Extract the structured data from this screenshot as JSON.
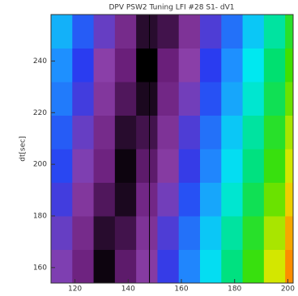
{
  "chart_data": {
    "type": "heatmap",
    "title": "DPV PSW2 Tuning LFI #28 S1- dV1",
    "ylabel": "dt[sec]",
    "x": [
      115,
      123,
      131,
      139,
      147,
      155,
      163,
      171,
      179,
      187,
      195,
      203
    ],
    "y": [
      160.5,
      173.5,
      186.5,
      199.5,
      212.5,
      225.5,
      238.5,
      251.5
    ],
    "z": [
      [
        17,
        9,
        1,
        7,
        15,
        23,
        31,
        39,
        47,
        55,
        63,
        71
      ],
      [
        19,
        11,
        3,
        5,
        13,
        21,
        29,
        37,
        45,
        53,
        61,
        69
      ],
      [
        22,
        14,
        6,
        2,
        10,
        18,
        26,
        34,
        42,
        50,
        58,
        66
      ],
      [
        25,
        17,
        9,
        1,
        7,
        15,
        23,
        31,
        39,
        47,
        55,
        63
      ],
      [
        27,
        19,
        11,
        3,
        5,
        13,
        21,
        29,
        37,
        45,
        53,
        61
      ],
      [
        30,
        22,
        14,
        6,
        2,
        10,
        18,
        26,
        34,
        42,
        50,
        58
      ],
      [
        32,
        24,
        16,
        8,
        0,
        8,
        16,
        24,
        32,
        40,
        48,
        56
      ],
      [
        35,
        27,
        19,
        11,
        3,
        5,
        13,
        21,
        29,
        37,
        45,
        53
      ]
    ],
    "zlim": [
      0,
      80
    ],
    "colors": [
      "#000000",
      "#6a1f7a",
      "#8a3fa8",
      "#2a3cf0",
      "#1e90ff",
      "#00e8f0",
      "#00e070",
      "#40e000",
      "#e8e800",
      "#ff8000",
      "#e00000"
    ],
    "vline": 148,
    "vline_color": "#000000",
    "xlim": [
      111,
      202
    ],
    "ylim": [
      154,
      258
    ],
    "xticks": [
      120,
      140,
      160,
      180,
      200
    ],
    "yticks": [
      160,
      180,
      200,
      220,
      240
    ]
  }
}
